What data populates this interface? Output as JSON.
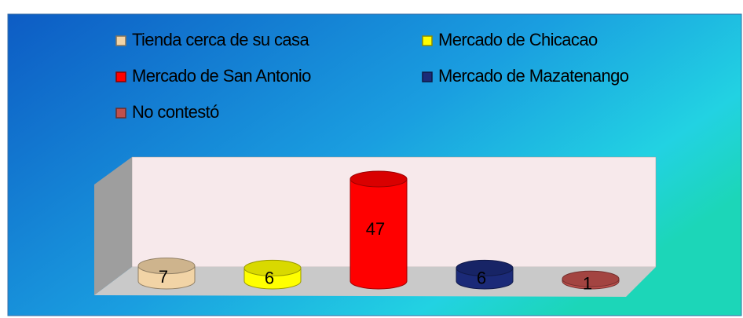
{
  "chart_data": {
    "type": "bar3d",
    "categories": [
      "Tienda cerca de su casa",
      "Mercado de Chicacao",
      "Mercado de San Antonio",
      "Mercado de Mazatenango",
      "No contestó"
    ],
    "values": [
      7,
      6,
      47,
      6,
      1
    ],
    "colors": [
      "#f2d4a6",
      "#ffff00",
      "#ff0000",
      "#1b2a78",
      "#c0504d"
    ],
    "legend": "top"
  }
}
